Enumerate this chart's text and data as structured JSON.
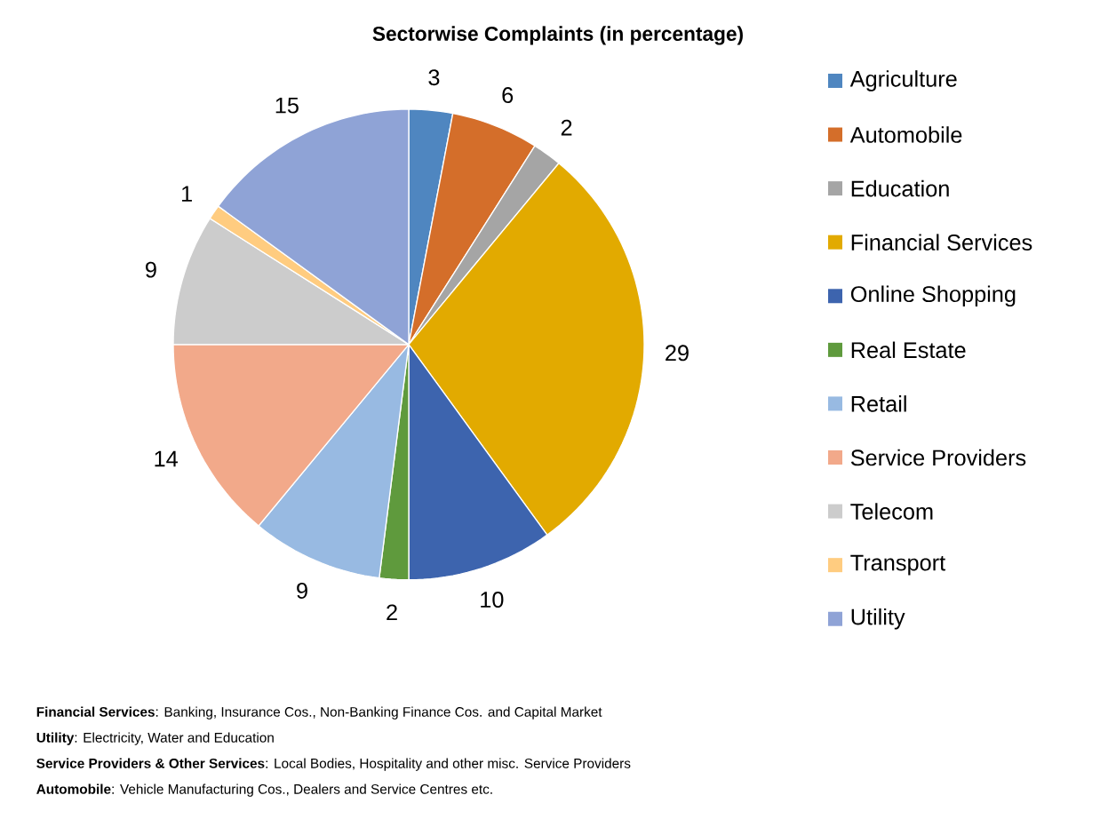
{
  "chart_data": {
    "type": "pie",
    "title": "Sectorwise Complaints (in percentage)",
    "categories": [
      "Agriculture",
      "Automobile",
      "Education",
      "Financial Services",
      "Online Shopping",
      "Real Estate",
      "Retail",
      "Service Providers",
      "Telecom",
      "Transport",
      "Utility"
    ],
    "values": [
      3,
      6,
      2,
      29,
      10,
      2,
      9,
      14,
      9,
      1,
      15
    ],
    "colors": [
      "#4f86c0",
      "#d46e2a",
      "#a5a5a5",
      "#e2aa00",
      "#3d64ae",
      "#5f9a3d",
      "#98bae2",
      "#f2a98a",
      "#cccccc",
      "#ffcc80",
      "#8fa3d6"
    ],
    "data_labels": true,
    "legend": "right",
    "annotations": [
      "**Financial Services**: Banking, Insurance Cos., Non-Banking Finance Cos. and Capital Market",
      "**Utility**: Electricity, Water and Education",
      "**Service Providers & Other Services**: Local Bodies, Hospitality and other misc. Service Providers",
      "**Automobile**: Vehicle Manufacturing Cos., Dealers and Service Centres etc."
    ]
  }
}
